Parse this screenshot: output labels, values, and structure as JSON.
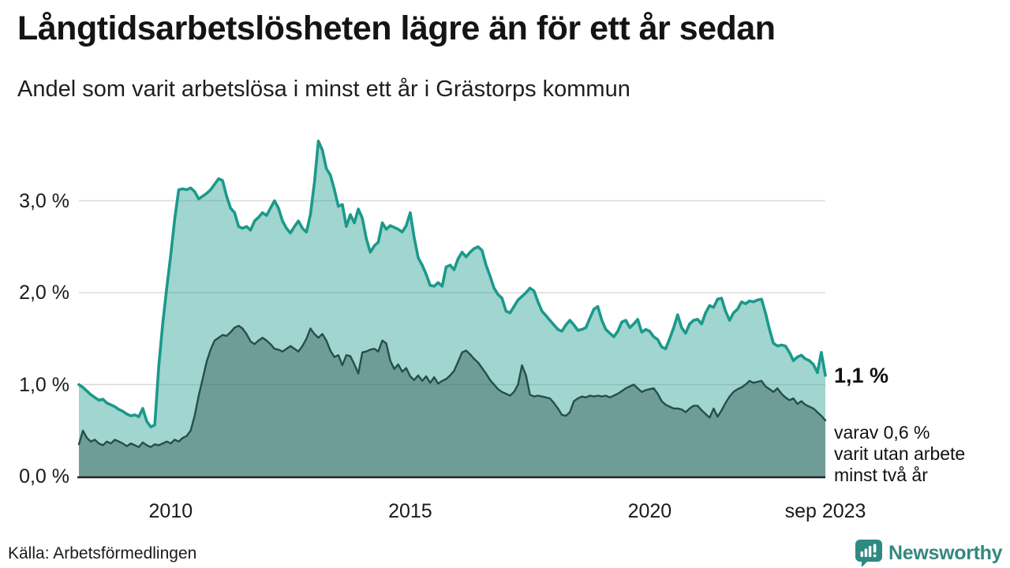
{
  "header": {
    "title": "Långtidsarbetslösheten lägre än för ett år sedan",
    "subtitle": "Andel som varit arbetslösa i minst ett år i Grästorps kommun"
  },
  "annotations": {
    "latest_value": "1,1 %",
    "latest_sub_line1": "varav 0,6 %",
    "latest_sub_line2": "varit utan arbete",
    "latest_sub_line3": "minst två år"
  },
  "source": {
    "label": "Källa: Arbetsförmedlingen"
  },
  "branding": {
    "name": "Newsworthy",
    "logo_icon": "newsworthy-speech-bubble-chart-icon",
    "color": "#2E8A80"
  },
  "colors": {
    "series_one_year_line": "#1B998B",
    "series_one_year_fill": "#A2D5CF",
    "series_two_years_line": "#274E48",
    "series_two_years_fill": "#719D99",
    "gridline": "#DBDBDB",
    "axis": "#222222"
  },
  "chart_data": {
    "type": "area",
    "title": "Långtidsarbetslösheten lägre än för ett år sedan",
    "subtitle": "Andel som varit arbetslösa i minst ett år i Grästorps kommun",
    "unit": "%",
    "frequency": "monthly",
    "x_start": "2008-02",
    "x_end": "2023-09",
    "ylim": [
      0,
      3.8
    ],
    "grid": true,
    "legend_position": "none",
    "y_ticks": [
      {
        "value": 0,
        "label": "0,0 %"
      },
      {
        "value": 1,
        "label": "1,0 %"
      },
      {
        "value": 2,
        "label": "2,0 %"
      },
      {
        "value": 3,
        "label": "3,0 %"
      }
    ],
    "x_ticks": [
      {
        "label": "2010",
        "month_index": 23
      },
      {
        "label": "2015",
        "month_index": 83
      },
      {
        "label": "2020",
        "month_index": 143
      },
      {
        "label": "sep 2023",
        "month_index": 187
      }
    ],
    "series": [
      {
        "name": "Andel arbetslösa minst ett år",
        "color": "#1B998B",
        "fill": "#A2D5CF",
        "latest_label": "1,1 %",
        "values": [
          1.0,
          0.97,
          0.93,
          0.89,
          0.86,
          0.83,
          0.84,
          0.8,
          0.78,
          0.76,
          0.73,
          0.71,
          0.68,
          0.66,
          0.67,
          0.65,
          0.74,
          0.6,
          0.54,
          0.56,
          1.2,
          1.66,
          2.05,
          2.41,
          2.8,
          3.12,
          3.13,
          3.12,
          3.14,
          3.1,
          3.02,
          3.05,
          3.08,
          3.12,
          3.18,
          3.24,
          3.22,
          3.05,
          2.92,
          2.87,
          2.72,
          2.7,
          2.72,
          2.68,
          2.78,
          2.82,
          2.87,
          2.84,
          2.92,
          3.0,
          2.92,
          2.78,
          2.7,
          2.65,
          2.72,
          2.78,
          2.7,
          2.66,
          2.85,
          3.2,
          3.65,
          3.55,
          3.35,
          3.28,
          3.12,
          2.94,
          2.96,
          2.72,
          2.85,
          2.76,
          2.91,
          2.81,
          2.59,
          2.44,
          2.51,
          2.55,
          2.76,
          2.69,
          2.73,
          2.71,
          2.69,
          2.66,
          2.73,
          2.87,
          2.6,
          2.38,
          2.3,
          2.2,
          2.08,
          2.07,
          2.11,
          2.07,
          2.28,
          2.3,
          2.25,
          2.37,
          2.44,
          2.39,
          2.44,
          2.48,
          2.5,
          2.46,
          2.3,
          2.18,
          2.05,
          1.98,
          1.94,
          1.8,
          1.78,
          1.85,
          1.92,
          1.96,
          2.0,
          2.05,
          2.02,
          1.9,
          1.8,
          1.75,
          1.7,
          1.65,
          1.6,
          1.58,
          1.65,
          1.7,
          1.65,
          1.59,
          1.6,
          1.62,
          1.72,
          1.82,
          1.85,
          1.7,
          1.6,
          1.56,
          1.52,
          1.58,
          1.68,
          1.7,
          1.62,
          1.66,
          1.71,
          1.57,
          1.6,
          1.58,
          1.52,
          1.49,
          1.41,
          1.39,
          1.5,
          1.62,
          1.76,
          1.62,
          1.56,
          1.66,
          1.7,
          1.71,
          1.66,
          1.78,
          1.86,
          1.84,
          1.93,
          1.94,
          1.8,
          1.7,
          1.78,
          1.82,
          1.9,
          1.88,
          1.91,
          1.9,
          1.92,
          1.93,
          1.78,
          1.6,
          1.45,
          1.42,
          1.43,
          1.42,
          1.35,
          1.26,
          1.3,
          1.32,
          1.28,
          1.26,
          1.22,
          1.13,
          1.35,
          1.1
        ]
      },
      {
        "name": "Andel arbetslösa minst två år",
        "color": "#274E48",
        "fill": "#719D99",
        "latest_label": "0,6 %",
        "values": [
          0.35,
          0.5,
          0.42,
          0.38,
          0.4,
          0.36,
          0.34,
          0.38,
          0.36,
          0.4,
          0.38,
          0.36,
          0.33,
          0.36,
          0.34,
          0.32,
          0.37,
          0.34,
          0.32,
          0.35,
          0.34,
          0.36,
          0.38,
          0.36,
          0.4,
          0.38,
          0.42,
          0.44,
          0.5,
          0.66,
          0.88,
          1.06,
          1.25,
          1.38,
          1.48,
          1.51,
          1.54,
          1.53,
          1.57,
          1.62,
          1.64,
          1.61,
          1.55,
          1.47,
          1.44,
          1.48,
          1.51,
          1.48,
          1.44,
          1.39,
          1.38,
          1.36,
          1.39,
          1.42,
          1.39,
          1.36,
          1.42,
          1.5,
          1.61,
          1.55,
          1.51,
          1.55,
          1.48,
          1.37,
          1.3,
          1.32,
          1.21,
          1.32,
          1.31,
          1.22,
          1.12,
          1.35,
          1.36,
          1.38,
          1.39,
          1.36,
          1.48,
          1.45,
          1.26,
          1.17,
          1.22,
          1.14,
          1.18,
          1.09,
          1.05,
          1.1,
          1.04,
          1.09,
          1.02,
          1.08,
          1.01,
          1.04,
          1.06,
          1.1,
          1.15,
          1.25,
          1.35,
          1.37,
          1.33,
          1.28,
          1.24,
          1.18,
          1.12,
          1.05,
          1.0,
          0.95,
          0.92,
          0.9,
          0.88,
          0.92,
          1.0,
          1.21,
          1.1,
          0.89,
          0.87,
          0.88,
          0.87,
          0.86,
          0.85,
          0.8,
          0.74,
          0.67,
          0.66,
          0.7,
          0.82,
          0.85,
          0.87,
          0.86,
          0.88,
          0.87,
          0.88,
          0.87,
          0.88,
          0.86,
          0.88,
          0.9,
          0.93,
          0.96,
          0.98,
          1.0,
          0.96,
          0.92,
          0.94,
          0.95,
          0.96,
          0.9,
          0.82,
          0.78,
          0.76,
          0.74,
          0.74,
          0.73,
          0.7,
          0.74,
          0.77,
          0.77,
          0.72,
          0.68,
          0.64,
          0.74,
          0.65,
          0.72,
          0.8,
          0.87,
          0.92,
          0.95,
          0.97,
          1.0,
          1.04,
          1.02,
          1.03,
          1.04,
          0.98,
          0.95,
          0.92,
          0.96,
          0.9,
          0.86,
          0.83,
          0.85,
          0.79,
          0.82,
          0.78,
          0.76,
          0.74,
          0.7,
          0.66,
          0.61
        ]
      }
    ]
  }
}
